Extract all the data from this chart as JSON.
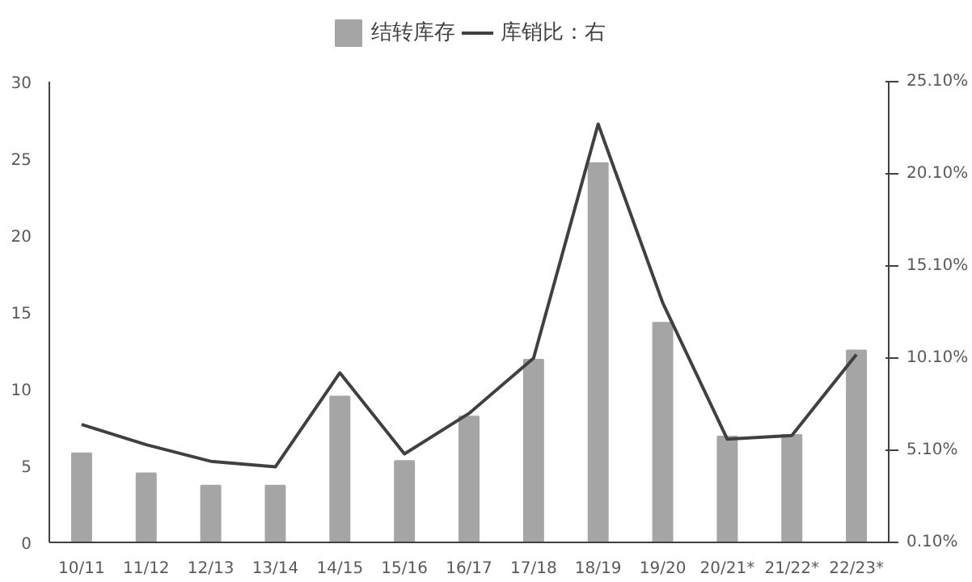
{
  "chart_data": {
    "type": "bar",
    "categories": [
      "10/11",
      "11/12",
      "12/13",
      "13/14",
      "14/15",
      "15/16",
      "16/17",
      "17/18",
      "18/19",
      "19/20",
      "20/21*",
      "21/22*",
      "22/23*"
    ],
    "series": [
      {
        "name": "结转库存",
        "color": "#a5a5a5",
        "values": [
          5.8,
          4.5,
          3.7,
          3.7,
          9.5,
          5.3,
          8.2,
          11.9,
          24.7,
          14.3,
          6.9,
          7.0,
          12.5
        ]
      },
      {
        "name": "库销比：右",
        "type": "line",
        "axis": "y2",
        "color": "#404040",
        "values": [
          6.5,
          5.4,
          4.5,
          4.2,
          9.3,
          4.9,
          7.1,
          10.1,
          22.8,
          13.1,
          5.7,
          5.9,
          10.3
        ]
      }
    ],
    "ylim": [
      0,
      30
    ],
    "yticks": [
      0,
      5,
      10,
      15,
      20,
      25,
      30
    ],
    "y2lim": [
      0.1,
      25.1
    ],
    "y2ticks": [
      {
        "value": 0.1,
        "label": "0.10%"
      },
      {
        "value": 5.1,
        "label": "5.10%"
      },
      {
        "value": 10.1,
        "label": "10.10%"
      },
      {
        "value": 15.1,
        "label": "15.10%"
      },
      {
        "value": 20.1,
        "label": "20.10%"
      },
      {
        "value": 25.1,
        "label": "25.10%"
      }
    ],
    "legend": "top",
    "grid": false
  }
}
